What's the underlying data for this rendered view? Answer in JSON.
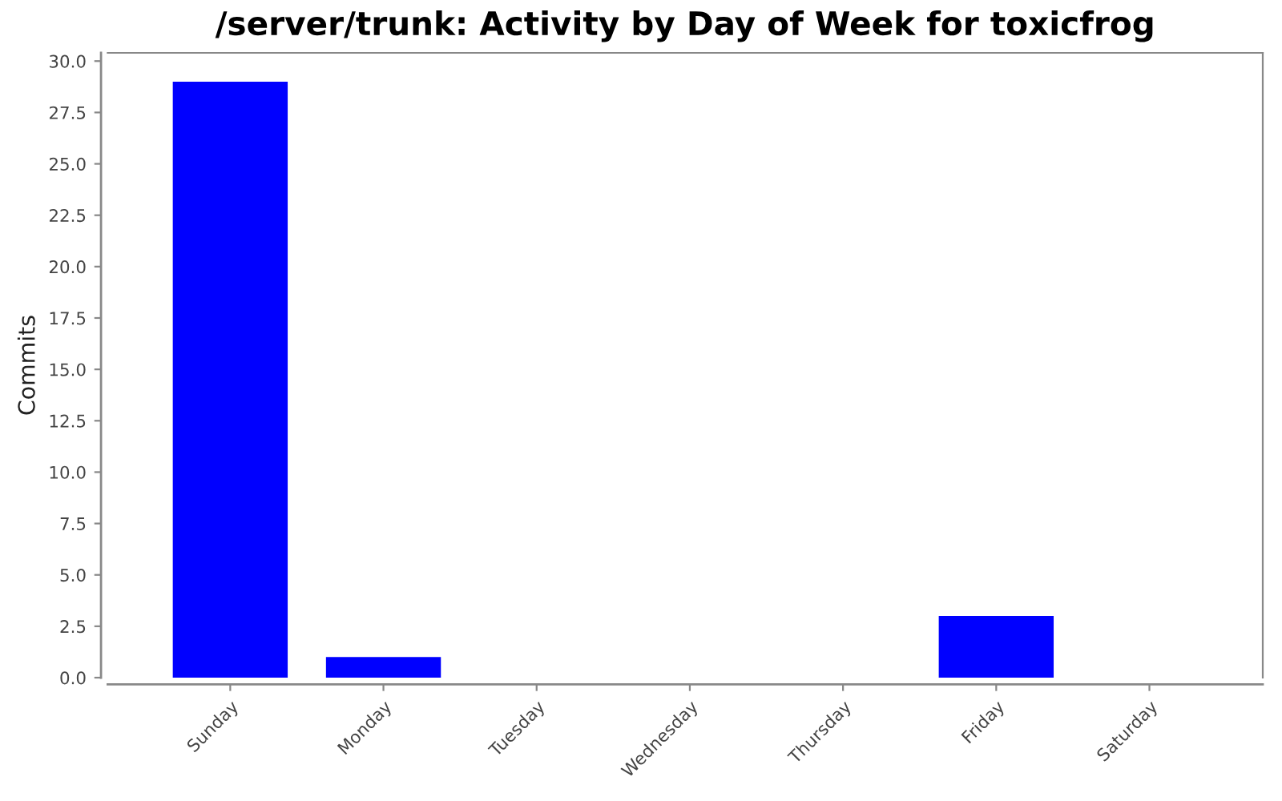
{
  "chart_data": {
    "type": "bar",
    "title": "/server/trunk: Activity by Day of Week for toxicfrog",
    "ylabel": "Commits",
    "categories": [
      "Sunday",
      "Monday",
      "Tuesday",
      "Wednesday",
      "Thursday",
      "Friday",
      "Saturday"
    ],
    "values": [
      29,
      1,
      0,
      0,
      0,
      3,
      0
    ],
    "color": "#0000ff",
    "ylim": [
      0,
      30.4
    ],
    "yticks": [
      {
        "value": 0,
        "label": "0.0"
      },
      2.5,
      {
        "value": 5,
        "label": "5.0"
      },
      7.5,
      {
        "value": 10,
        "label": "10.0"
      },
      12.5,
      {
        "value": 15,
        "label": "15.0"
      },
      17.5,
      {
        "value": 20,
        "label": "20.0"
      },
      22.5,
      {
        "value": 25,
        "label": "25.0"
      },
      27.5,
      {
        "value": 30,
        "label": "30.0"
      }
    ],
    "grid": false,
    "legend": false
  }
}
